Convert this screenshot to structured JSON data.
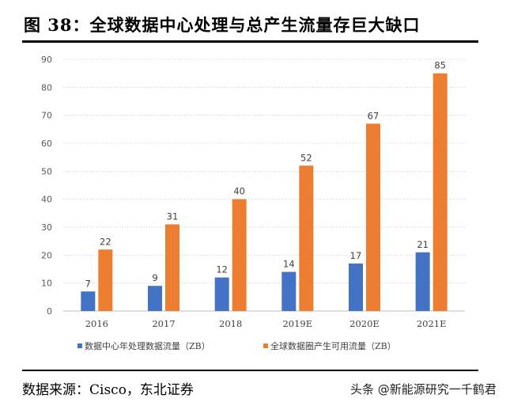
{
  "title": "图 38：全球数据中心处理与总产生流量存巨大缺口",
  "source": "数据来源：Cisco，东北证券",
  "watermark": "头条 @新能源研究一千鹤君",
  "chart_data": {
    "type": "bar",
    "categories": [
      "2016",
      "2017",
      "2018",
      "2019E",
      "2020E",
      "2021E"
    ],
    "series": [
      {
        "name": "数据中心年处理数据流量（ZB）",
        "values": [
          7,
          9,
          12,
          14,
          17,
          21
        ],
        "color": "#4472C4"
      },
      {
        "name": "全球数据圈产生可用流量（ZB）",
        "values": [
          22,
          31,
          40,
          52,
          67,
          85
        ],
        "color": "#ED7D31"
      }
    ],
    "ylim": [
      0,
      90
    ],
    "yticks": [
      0,
      10,
      20,
      30,
      40,
      50,
      60,
      70,
      80,
      90
    ],
    "grid": true,
    "legend": "bottom"
  }
}
